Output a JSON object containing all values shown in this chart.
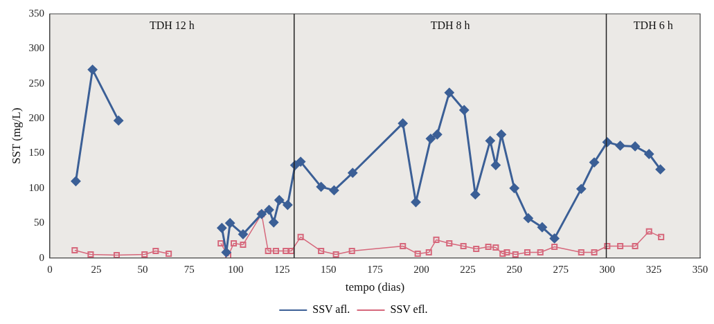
{
  "chart_data": {
    "type": "line",
    "xlabel": "tempo (dias)",
    "ylabel": "SST (mg/L)",
    "xlim": [
      0,
      350
    ],
    "xticks": [
      0,
      25,
      50,
      75,
      100,
      125,
      150,
      175,
      200,
      225,
      250,
      275,
      300,
      325,
      350
    ],
    "ylim": [
      0,
      350
    ],
    "yticks": [
      0,
      50,
      100,
      150,
      200,
      250,
      300,
      350
    ],
    "grid": false,
    "legend": "bottom",
    "series": [
      {
        "name": "SSV afl.",
        "color": "#3b5f96",
        "marker": "diamond",
        "x": [
          14,
          23,
          37,
          null,
          92.6,
          95,
          97,
          104,
          114,
          118,
          120.5,
          123.5,
          128,
          132,
          135,
          146,
          153,
          163,
          190,
          197,
          205,
          208.5,
          215,
          223,
          229,
          237,
          240,
          243,
          250,
          257.5,
          265,
          271.6,
          286,
          293,
          300,
          307,
          315,
          322.5,
          328.6
        ],
        "values": [
          110,
          270,
          197,
          null,
          43,
          8,
          50,
          34,
          63,
          69,
          51,
          83,
          76,
          133,
          138,
          102,
          97,
          122,
          193,
          80,
          171,
          177,
          237,
          212,
          91,
          168,
          133,
          177,
          100,
          57,
          44,
          28,
          99,
          137,
          166,
          161,
          160,
          149,
          127
        ]
      },
      {
        "name": "SSV efl.",
        "color": "#d6677b",
        "marker": "square",
        "x": [
          13.4,
          22,
          36,
          51,
          57,
          64,
          null,
          92,
          96,
          99,
          104,
          114,
          117.5,
          121.7,
          127,
          130,
          135,
          146,
          154,
          162.6,
          190,
          198,
          204,
          208,
          215,
          222.6,
          229.5,
          236,
          240,
          243.7,
          246,
          250.6,
          257,
          264,
          271.6,
          286,
          293,
          300,
          307,
          315,
          322.5,
          329
        ],
        "values": [
          11,
          5,
          4,
          5,
          10,
          6,
          null,
          21,
          3,
          21,
          19,
          63,
          10,
          10,
          10,
          10,
          30,
          10,
          5,
          10,
          17,
          6,
          8,
          26,
          21,
          17,
          13,
          16,
          15,
          6,
          8,
          5,
          8,
          8,
          16,
          8,
          8,
          17,
          17,
          17,
          38,
          30
        ]
      }
    ],
    "ref_lines": [
      {
        "axis": "x",
        "value": 131.5,
        "color": "#222222"
      },
      {
        "axis": "x",
        "value": 299.5,
        "color": "#222222"
      }
    ],
    "annotations": [
      "TDH 12 h",
      "TDH 8 h",
      "TDH 6 h"
    ]
  }
}
